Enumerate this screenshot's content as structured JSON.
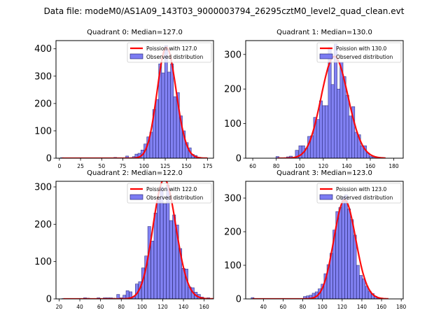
{
  "chart_data": {
    "suptitle": "Data file: modeM0/AS1A09_143T03_9000003794_26295cztM0_level2_quad_clean.evt",
    "colors": {
      "hist_fill": "#7b7bf2",
      "hist_edge": "#1a1a66",
      "poisson": "#ff0000"
    },
    "panels": [
      {
        "type": "bar",
        "title": "Quadrant 0: Median=127.0",
        "median": 127.0,
        "legend": [
          "Poission with 127.0",
          "Observed distribution"
        ],
        "legend_loc": "upper right",
        "xlim": [
          -4,
          182
        ],
        "ylim": [
          0,
          430
        ],
        "xticks": [
          0,
          25,
          50,
          75,
          100,
          125,
          150,
          175
        ],
        "yticks": [
          0,
          100,
          200,
          300,
          400
        ],
        "bin_width": 3.5,
        "bins": [
          [
            3,
            2
          ],
          [
            66,
            3
          ],
          [
            80,
            8
          ],
          [
            88,
            6
          ],
          [
            91,
            15
          ],
          [
            94.5,
            18
          ],
          [
            98,
            30
          ],
          [
            101.5,
            52
          ],
          [
            105,
            78
          ],
          [
            108.5,
            95
          ],
          [
            112,
            178
          ],
          [
            115.5,
            215
          ],
          [
            119,
            345
          ],
          [
            122.5,
            312
          ],
          [
            126,
            412
          ],
          [
            129.5,
            315
          ],
          [
            133,
            345
          ],
          [
            136.5,
            225
          ],
          [
            140,
            240
          ],
          [
            143.5,
            155
          ],
          [
            147,
            100
          ],
          [
            150.5,
            57
          ],
          [
            154,
            38
          ],
          [
            157.5,
            14
          ],
          [
            161,
            10
          ],
          [
            165,
            3
          ]
        ]
      },
      {
        "type": "bar",
        "title": "Quadrant 1: Median=130.0",
        "median": 130.0,
        "legend": [
          "Poission with 130.0",
          "Observed distribution"
        ],
        "legend_loc": "upper right",
        "xlim": [
          54,
          188
        ],
        "ylim": [
          0,
          340
        ],
        "xticks": [
          60,
          80,
          100,
          120,
          140,
          160,
          180
        ],
        "yticks": [
          0,
          100,
          200,
          300
        ],
        "bin_width": 2.6,
        "bins": [
          [
            81,
            5
          ],
          [
            90,
            4
          ],
          [
            92.5,
            6
          ],
          [
            97.5,
            23
          ],
          [
            100.5,
            36
          ],
          [
            103,
            36
          ],
          [
            105.5,
            28
          ],
          [
            108,
            63
          ],
          [
            110.5,
            65
          ],
          [
            113,
            118
          ],
          [
            115.5,
            112
          ],
          [
            118,
            166
          ],
          [
            120.5,
            152
          ],
          [
            123,
            152
          ],
          [
            125.5,
            320
          ],
          [
            128,
            213
          ],
          [
            130.5,
            330
          ],
          [
            133,
            200
          ],
          [
            135.5,
            278
          ],
          [
            138,
            236
          ],
          [
            140.5,
            182
          ],
          [
            143,
            122
          ],
          [
            145.5,
            149
          ],
          [
            148,
            75
          ],
          [
            150.5,
            68
          ],
          [
            153,
            36
          ],
          [
            155.5,
            36
          ],
          [
            158,
            15
          ],
          [
            160.5,
            6
          ],
          [
            163,
            3
          ]
        ]
      },
      {
        "type": "bar",
        "title": "Quadrant 2: Median=122.0",
        "median": 122.0,
        "legend": [
          "Poission with 122.0",
          "Observed distribution"
        ],
        "legend_loc": "upper right",
        "xlim": [
          17,
          169
        ],
        "ylim": [
          0,
          315
        ],
        "xticks": [
          20,
          40,
          60,
          80,
          100,
          120,
          140,
          160
        ],
        "yticks": [
          0,
          100,
          200,
          300
        ],
        "bin_width": 2.85,
        "bins": [
          [
            24,
            1
          ],
          [
            45,
            3
          ],
          [
            48,
            2
          ],
          [
            58,
            3
          ],
          [
            64,
            3
          ],
          [
            67,
            3
          ],
          [
            70,
            3
          ],
          [
            73,
            2
          ],
          [
            77,
            12
          ],
          [
            80,
            3
          ],
          [
            83,
            10
          ],
          [
            86,
            22
          ],
          [
            89,
            19
          ],
          [
            92,
            6
          ],
          [
            95,
            40
          ],
          [
            98,
            46
          ],
          [
            101,
            83
          ],
          [
            104,
            115
          ],
          [
            107,
            194
          ],
          [
            110,
            155
          ],
          [
            113,
            230
          ],
          [
            116,
            268
          ],
          [
            119,
            300
          ],
          [
            122,
            255
          ],
          [
            125,
            305
          ],
          [
            128,
            210
          ],
          [
            131,
            225
          ],
          [
            134,
            198
          ],
          [
            137,
            135
          ],
          [
            140,
            82
          ],
          [
            143,
            80
          ],
          [
            146,
            32
          ],
          [
            149,
            30
          ],
          [
            152,
            18
          ],
          [
            155,
            12
          ],
          [
            158,
            5
          ],
          [
            164,
            3
          ]
        ]
      },
      {
        "type": "bar",
        "title": "Quadrant 3: Median=123.0",
        "median": 123.0,
        "legend": [
          "Poission with 123.0",
          "Observed distribution"
        ],
        "legend_loc": "upper right",
        "xlim": [
          22,
          182
        ],
        "ylim": [
          0,
          350
        ],
        "xticks": [
          40,
          60,
          80,
          100,
          120,
          140,
          160,
          180
        ],
        "yticks": [
          0,
          100,
          200,
          300
        ],
        "bin_width": 2.9,
        "bins": [
          [
            29,
            4
          ],
          [
            82,
            7
          ],
          [
            85,
            9
          ],
          [
            88,
            11
          ],
          [
            91,
            17
          ],
          [
            94,
            21
          ],
          [
            97,
            30
          ],
          [
            100,
            44
          ],
          [
            103,
            75
          ],
          [
            106,
            102
          ],
          [
            109,
            136
          ],
          [
            112,
            205
          ],
          [
            115,
            260
          ],
          [
            118,
            272
          ],
          [
            121,
            305
          ],
          [
            124,
            310
          ],
          [
            127,
            268
          ],
          [
            130,
            236
          ],
          [
            133,
            190
          ],
          [
            136,
            100
          ],
          [
            139,
            70
          ],
          [
            142,
            60
          ],
          [
            145,
            38
          ],
          [
            148,
            23
          ],
          [
            151,
            16
          ],
          [
            154,
            8
          ],
          [
            157,
            3
          ]
        ]
      }
    ]
  }
}
